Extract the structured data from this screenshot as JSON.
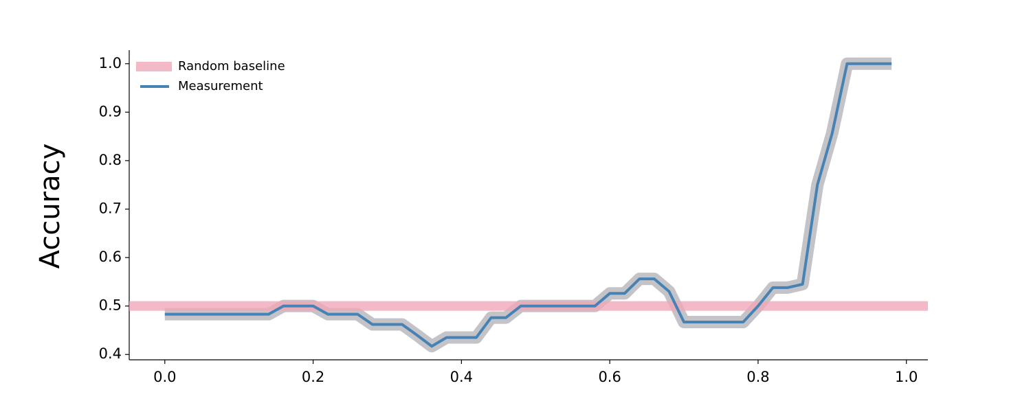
{
  "chart_data": {
    "type": "line",
    "ylabel": "Accuracy",
    "x": [
      0,
      0.02,
      0.04,
      0.06,
      0.08,
      0.1,
      0.12,
      0.14,
      0.16,
      0.18,
      0.2,
      0.22,
      0.24,
      0.26,
      0.28,
      0.3,
      0.32,
      0.34,
      0.36,
      0.38,
      0.4,
      0.42,
      0.44,
      0.46,
      0.48,
      0.5,
      0.52,
      0.54,
      0.56,
      0.58,
      0.6,
      0.62,
      0.64,
      0.66,
      0.68,
      0.7,
      0.72,
      0.74,
      0.76,
      0.78,
      0.8,
      0.82,
      0.84,
      0.86,
      0.88,
      0.9,
      0.92,
      0.94,
      0.96,
      0.98
    ],
    "series": [
      {
        "name": "Measurement",
        "color": "#4682b4",
        "halo_color": "#c4c4c8",
        "values": [
          0.483,
          0.483,
          0.483,
          0.483,
          0.483,
          0.483,
          0.483,
          0.483,
          0.5,
          0.5,
          0.5,
          0.483,
          0.483,
          0.483,
          0.462,
          0.462,
          0.462,
          0.44,
          0.417,
          0.435,
          0.435,
          0.435,
          0.476,
          0.476,
          0.5,
          0.5,
          0.5,
          0.5,
          0.5,
          0.5,
          0.526,
          0.526,
          0.556,
          0.556,
          0.53,
          0.467,
          0.467,
          0.467,
          0.467,
          0.467,
          0.5,
          0.538,
          0.538,
          0.545,
          0.75,
          0.857,
          1.0,
          1.0,
          1.0,
          1.0
        ]
      }
    ],
    "baseline": {
      "name": "Random baseline",
      "value": 0.5,
      "color": "#f0a8b8"
    },
    "xlim": [
      -0.048,
      1.029
    ],
    "ylim": [
      0.389,
      1.028
    ],
    "xticks": [
      {
        "value": 0,
        "label": "0.0"
      },
      0.2,
      0.4,
      0.6,
      0.8,
      {
        "value": 1,
        "label": "1.0"
      }
    ],
    "yticks": [
      0.4,
      0.5,
      0.6,
      0.7,
      0.8,
      0.9,
      {
        "value": 1,
        "label": "1.0"
      }
    ],
    "legend": "upper left"
  }
}
